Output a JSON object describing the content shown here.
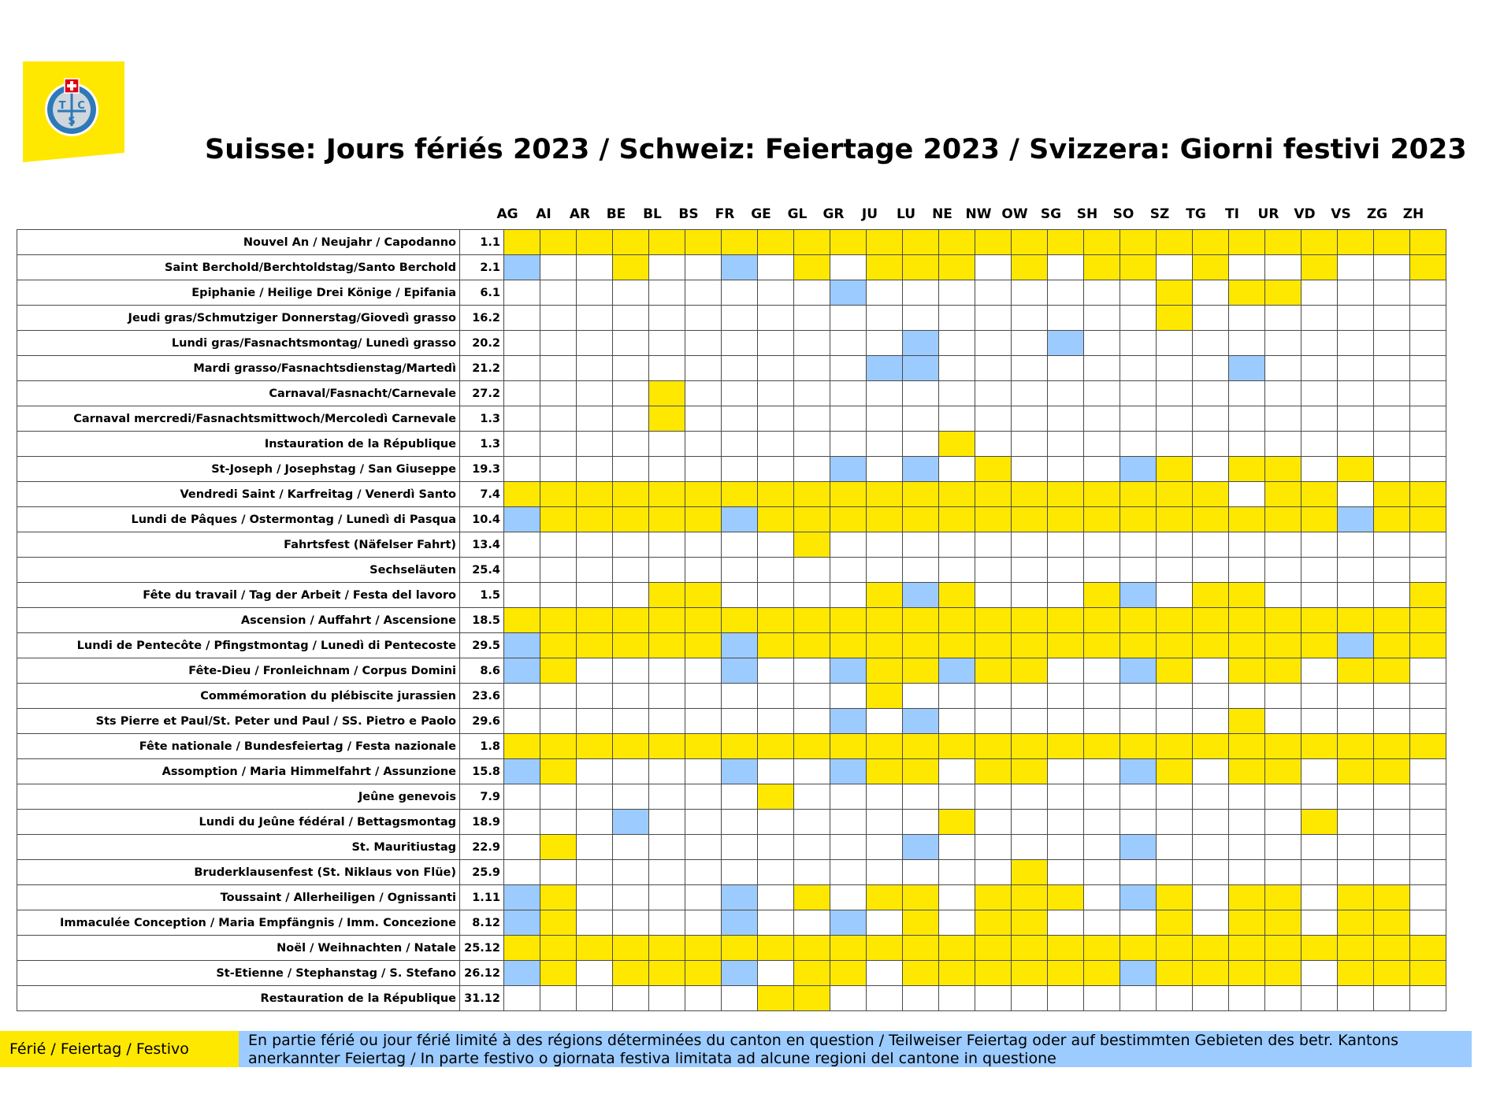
{
  "header": {
    "logo_text": "TCS",
    "title": "Suisse: Jours fériés 2023 / Schweiz: Feiertage 2023 / Svizzera: Giorni festivi 2023"
  },
  "colors": {
    "full_holiday": "#ffe800",
    "partial_holiday": "#9ccbff"
  },
  "cantons": [
    "AG",
    "AI",
    "AR",
    "BE",
    "BL",
    "BS",
    "FR",
    "GE",
    "GL",
    "GR",
    "JU",
    "LU",
    "NE",
    "NW",
    "OW",
    "SG",
    "SH",
    "SO",
    "SZ",
    "TG",
    "TI",
    "UR",
    "VD",
    "VS",
    "ZG",
    "ZH"
  ],
  "rows": [
    {
      "name": "Nouvel An / Neujahr / Capodanno",
      "date": "1.1",
      "cells": "YYYYYYYYYYYYYYYYYYYYYYYYYY"
    },
    {
      "name": "Saint Berchold/Berchtoldstag/Santo Berchold",
      "date": "2.1",
      "cells": "B..Y..B.Y.YYY.Y.YY.Y..Y..Y"
    },
    {
      "name": "Epiphanie / Heilige Drei Könige / Epifania",
      "date": "6.1",
      "cells": ".........B........Y.YY...."
    },
    {
      "name": "Jeudi gras/Schmutziger Donnerstag/Giovedì grasso",
      "date": "16.2",
      "cells": "..................Y......."
    },
    {
      "name": "Lundi gras/Fasnachtsmontag/ Lunedì grasso",
      "date": "20.2",
      "cells": "...........B...B.........."
    },
    {
      "name": "Mardi grasso/Fasnachtsdienstag/Martedì",
      "date": "21.2",
      "cells": "..........BB........B....."
    },
    {
      "name": "Carnaval/Fasnacht/Carnevale",
      "date": "27.2",
      "cells": "....Y....................."
    },
    {
      "name": "Carnaval mercredi/Fasnachtsmittwoch/Mercoledì Carnevale",
      "date": "1.3",
      "cells": "....Y....................."
    },
    {
      "name": "Instauration de la République",
      "date": "1.3",
      "cells": "............Y............."
    },
    {
      "name": "St-Joseph / Josephstag / San Giuseppe",
      "date": "19.3",
      "cells": ".........B.B.Y...BY.YY.Y.."
    },
    {
      "name": "Vendredi Saint / Karfreitag / Venerdì Santo",
      "date": "7.4",
      "cells": "YYYYYYYYYYYYYYYYYYYY.YY.YY"
    },
    {
      "name": "Lundi de Pâques / Ostermontag / Lunedì di Pasqua",
      "date": "10.4",
      "cells": "BYYYYYBYYYYYYYYYYYYYYYYBYY"
    },
    {
      "name": "Fahrtsfest (Näfelser Fahrt)",
      "date": "13.4",
      "cells": "........Y................."
    },
    {
      "name": "Sechseläuten",
      "date": "25.4",
      "cells": ".........................."
    },
    {
      "name": "Fête du travail / Tag der Arbeit / Festa del lavoro",
      "date": "1.5",
      "cells": "....YY....YBY...YB.YY....Y"
    },
    {
      "name": "Ascension / Auffahrt / Ascensione",
      "date": "18.5",
      "cells": "YYYYYYYYYYYYYYYYYYYYYYYYYY"
    },
    {
      "name": "Lundi de Pentecôte / Pfingstmontag / Lunedì di Pentecoste",
      "date": "29.5",
      "cells": "BYYYYYBYYYYYYYYYYYYYYYYBYY"
    },
    {
      "name": "Fête-Dieu / Fronleichnam / Corpus Domini",
      "date": "8.6",
      "cells": "BY....B..BYYBYY..BY.YY.YY."
    },
    {
      "name": "Commémoration du plébiscite jurassien",
      "date": "23.6",
      "cells": "..........Y..............."
    },
    {
      "name": "Sts Pierre et Paul/St. Peter und Paul / SS. Pietro e Paolo",
      "date": "29.6",
      "cells": ".........B.B........Y....."
    },
    {
      "name": "Fête nationale / Bundesfeiertag / Festa nazionale",
      "date": "1.8",
      "cells": "YYYYYYYYYYYYYYYYYYYYYYYYYY"
    },
    {
      "name": "Assomption / Maria Himmelfahrt / Assunzione",
      "date": "15.8",
      "cells": "BY....B..BYY.YY..BY.YY.YY."
    },
    {
      "name": "Jeûne genevois",
      "date": "7.9",
      "cells": ".......Y.................."
    },
    {
      "name": "Lundi du Jeûne fédéral / Bettagsmontag",
      "date": "18.9",
      "cells": "...B........Y.........Y..."
    },
    {
      "name": "St. Mauritiustag",
      "date": "22.9",
      "cells": ".Y.........B.....B........"
    },
    {
      "name": "Bruderklausenfest (St. Niklaus von Flüe)",
      "date": "25.9",
      "cells": "..............Y..........."
    },
    {
      "name": "Toussaint / Allerheiligen / Ognissanti",
      "date": "1.11",
      "cells": "BY....B.Y.YY.YYY.BY.YY.YY."
    },
    {
      "name": "Immaculée Conception / Maria Empfängnis / Imm. Concezione",
      "date": "8.12",
      "cells": "BY....B..B.Y.YY...Y.YY.YY."
    },
    {
      "name": "Noël / Weihnachten / Natale",
      "date": "25.12",
      "cells": "YYYYYYYYYYYYYYYYYYYYYYYYYY"
    },
    {
      "name": "St-Etienne / Stephanstag / S. Stefano",
      "date": "26.12",
      "cells": "BY.YYYB.YY.YYYYYYBYYYY.YYY"
    },
    {
      "name": "Restauration de la République",
      "date": "31.12",
      "cells": ".......YY................."
    }
  ],
  "legend": {
    "full_label": "Férié / Feiertag / Festivo",
    "partial_label": "En partie férié ou jour férié limité à des régions déterminées du canton en question / Teilweiser Feiertag oder auf bestimmten Gebieten des betr. Kantons anerkannter Feiertag / In parte festivo o giornata festiva limitata ad alcune regioni del cantone in questione"
  }
}
